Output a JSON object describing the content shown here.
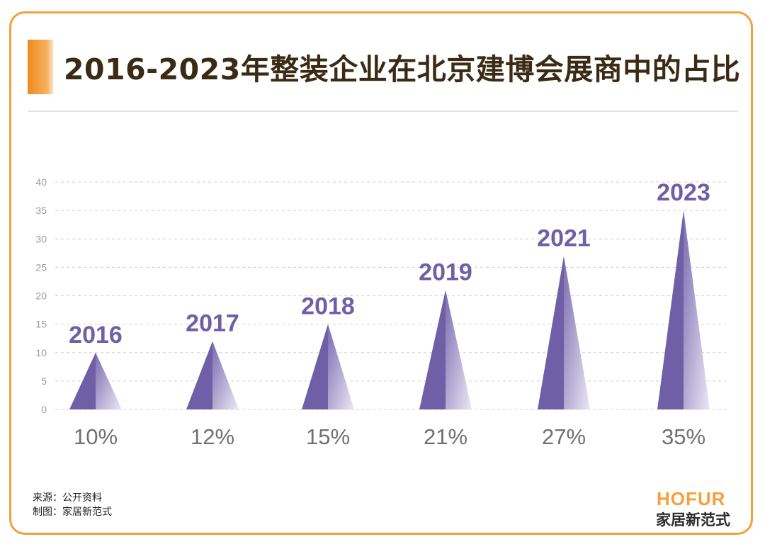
{
  "title": "2016-2023年整装企业在北京建博会展商中的占比",
  "chart_data": {
    "type": "bar",
    "style": "triangle-peaks",
    "categories": [
      "2016",
      "2017",
      "2018",
      "2019",
      "2021",
      "2023"
    ],
    "values": [
      10,
      12,
      15,
      21,
      27,
      35
    ],
    "value_labels": [
      "10%",
      "12%",
      "15%",
      "21%",
      "27%",
      "35%"
    ],
    "yticks": [
      0,
      5,
      10,
      15,
      20,
      25,
      30,
      35,
      40
    ],
    "ylim": [
      0,
      40
    ],
    "grid": true,
    "bar_color": "#6f5fa6"
  },
  "footer": {
    "source": "来源：公开资料",
    "made_by": "制图：家居新范式"
  },
  "brand": {
    "en": "HOFUR",
    "cn": "家居新范式",
    "accent_color": "#f4a13c"
  }
}
